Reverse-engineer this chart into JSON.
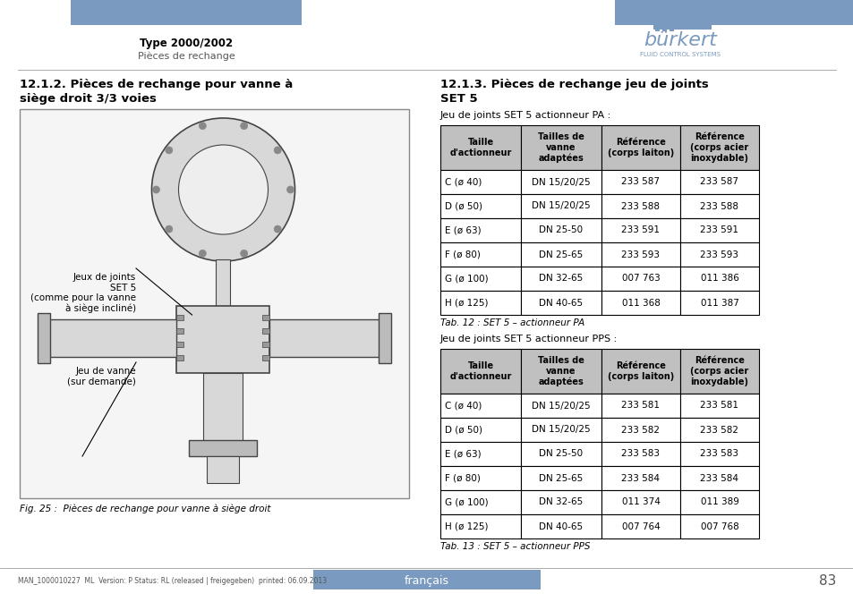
{
  "page_title_bold": "Type 2000/2002",
  "page_title_sub": "Pièces de rechange",
  "header_bar_color": "#7a9bbf",
  "bg_color": "#ffffff",
  "table1_intro": "Jeu de joints SET 5 actionneur PA :",
  "table2_intro": "Jeu de joints SET 5 actionneur PPS :",
  "table_headers": [
    "Taille\nd'actionneur",
    "Tailles de\nvanne\nadaptées",
    "Référence\n(corps laiton)",
    "Référence\n(corps acier\ninoxydable)"
  ],
  "table1_rows": [
    [
      "C (ø 40)",
      "DN 15/20/25",
      "233 587",
      "233 587"
    ],
    [
      "D (ø 50)",
      "DN 15/20/25",
      "233 588",
      "233 588"
    ],
    [
      "E (ø 63)",
      "DN 25-50",
      "233 591",
      "233 591"
    ],
    [
      "F (ø 80)",
      "DN 25-65",
      "233 593",
      "233 593"
    ],
    [
      "G (ø 100)",
      "DN 32-65",
      "007 763",
      "011 386"
    ],
    [
      "H (ø 125)",
      "DN 40-65",
      "011 368",
      "011 387"
    ]
  ],
  "table2_rows": [
    [
      "C (ø 40)",
      "DN 15/20/25",
      "233 581",
      "233 581"
    ],
    [
      "D (ø 50)",
      "DN 15/20/25",
      "233 582",
      "233 582"
    ],
    [
      "E (ø 63)",
      "DN 25-50",
      "233 583",
      "233 583"
    ],
    [
      "F (ø 80)",
      "DN 25-65",
      "233 584",
      "233 584"
    ],
    [
      "G (ø 100)",
      "DN 32-65",
      "011 374",
      "011 389"
    ],
    [
      "H (ø 125)",
      "DN 40-65",
      "007 764",
      "007 768"
    ]
  ],
  "table1_caption": "Tab. 12 : SET 5 – actionneur PA",
  "table2_caption": "Tab. 13 : SET 5 – actionneur PPS",
  "fig_caption": "Fig. 25 :  Pièces de rechange pour vanne à siège droit",
  "footer_text": "MAN_1000010227  ML  Version: P Status: RL (released | freigegeben)  printed: 06.09.2013",
  "footer_center": "français",
  "footer_page": "83",
  "table_header_color": "#c0c0c0",
  "table_border_color": "#000000"
}
